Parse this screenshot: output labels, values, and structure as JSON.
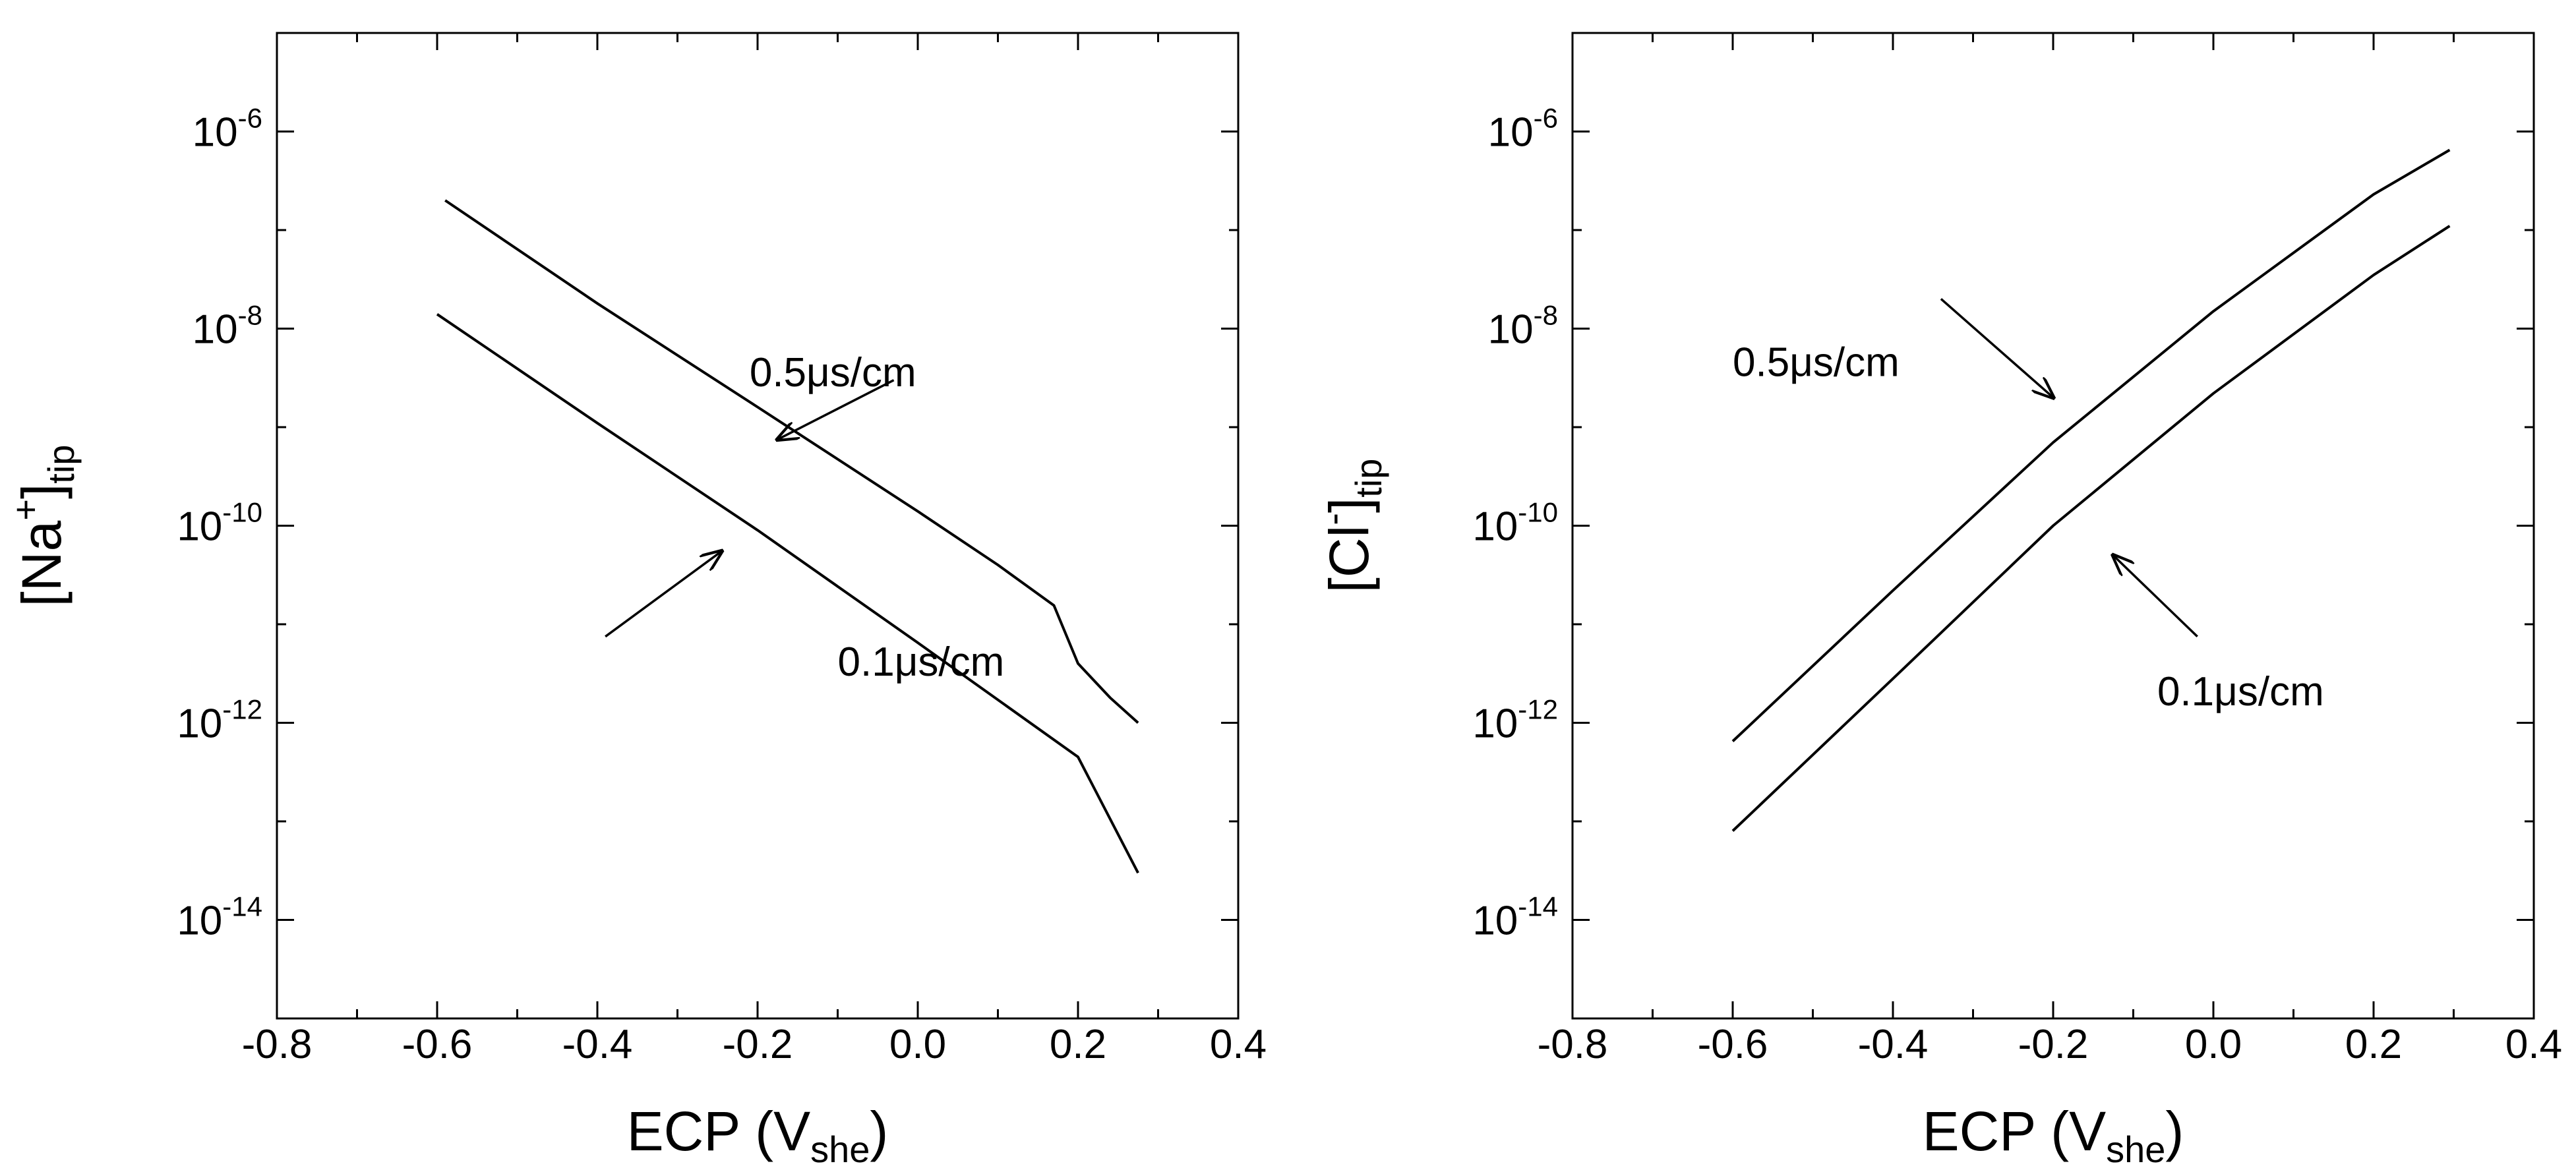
{
  "chart_data": [
    {
      "type": "line",
      "xlabel": "ECP (V",
      "xlabel_sub": "she",
      "xlabel_end": ")",
      "ylabel": "[Na",
      "ylabel_sup": "+",
      "ylabel_close": "]",
      "ylabel_sub": "tip",
      "xlim": [
        -0.8,
        0.4
      ],
      "ylim": [
        1e-15,
        1e-05
      ],
      "yscale": "log",
      "x_ticks": [
        "-0.8",
        "-0.6",
        "-0.4",
        "-0.2",
        "0.0",
        "0.2",
        "0.4"
      ],
      "y_ticks": [
        {
          "base": "10",
          "exp": "-14"
        },
        {
          "base": "10",
          "exp": "-12"
        },
        {
          "base": "10",
          "exp": "-10"
        },
        {
          "base": "10",
          "exp": "-8"
        },
        {
          "base": "10",
          "exp": "-6"
        }
      ],
      "grid": false,
      "series": [
        {
          "name": "0.5μs/cm",
          "x": [
            -0.59,
            -0.4,
            -0.2,
            0.0,
            0.1,
            0.17,
            0.2,
            0.24,
            0.275
          ],
          "y": [
            2e-07,
            1.8e-08,
            1.6e-09,
            1.4e-10,
            4e-11,
            1.55e-11,
            4e-12,
            1.8e-12,
            1e-12
          ]
        },
        {
          "name": "0.1μs/cm",
          "x": [
            -0.6,
            -0.4,
            -0.2,
            0.0,
            0.2,
            0.275
          ],
          "y": [
            1.4e-08,
            1.1e-09,
            9e-11,
            6.5e-12,
            4.5e-13,
            3e-14
          ]
        }
      ],
      "annotations": [
        {
          "text": "0.5μs/cm",
          "text_x": -0.21,
          "text_y": 2.6e-09,
          "arrow_from": [
            -0.03,
            3e-09
          ],
          "arrow_to": [
            -0.175,
            7.5e-10
          ]
        },
        {
          "text": "0.1μs/cm",
          "text_x": -0.1,
          "text_y": 3e-12,
          "arrow_from": [
            -0.39,
            7.5e-12
          ],
          "arrow_to": [
            -0.245,
            5.5e-11
          ]
        }
      ]
    },
    {
      "type": "line",
      "xlabel": "ECP (V",
      "xlabel_sub": "she",
      "xlabel_end": ")",
      "ylabel": "[Cl",
      "ylabel_sup": "-",
      "ylabel_close": "]",
      "ylabel_sub": "tip",
      "xlim": [
        -0.8,
        0.4
      ],
      "ylim": [
        1e-15,
        1e-05
      ],
      "yscale": "log",
      "x_ticks": [
        "-0.8",
        "-0.6",
        "-0.4",
        "-0.2",
        "0.0",
        "0.2",
        "0.4"
      ],
      "y_ticks": [
        {
          "base": "10",
          "exp": "-14"
        },
        {
          "base": "10",
          "exp": "-12"
        },
        {
          "base": "10",
          "exp": "-10"
        },
        {
          "base": "10",
          "exp": "-8"
        },
        {
          "base": "10",
          "exp": "-6"
        }
      ],
      "grid": false,
      "series": [
        {
          "name": "0.5μs/cm",
          "x": [
            -0.6,
            -0.4,
            -0.2,
            0.0,
            0.2,
            0.295
          ],
          "y": [
            6.5e-13,
            2.2e-11,
            7e-10,
            1.5e-08,
            2.3e-07,
            6.5e-07
          ]
        },
        {
          "name": "0.1μs/cm",
          "x": [
            -0.6,
            -0.4,
            -0.2,
            0.0,
            0.2,
            0.295
          ],
          "y": [
            8e-14,
            2.8e-12,
            1e-10,
            2.2e-09,
            3.5e-08,
            1.1e-07
          ]
        }
      ],
      "annotations": [
        {
          "text": "0.5μs/cm",
          "text_x": -0.6,
          "text_y": 3.3e-09,
          "arrow_from": [
            -0.34,
            2e-08
          ],
          "arrow_to": [
            -0.2,
            2e-09
          ]
        },
        {
          "text": "0.1μs/cm",
          "text_x": -0.07,
          "text_y": 1.5e-12,
          "arrow_from": [
            -0.02,
            7.5e-12
          ],
          "arrow_to": [
            -0.125,
            5e-11
          ]
        }
      ]
    }
  ]
}
